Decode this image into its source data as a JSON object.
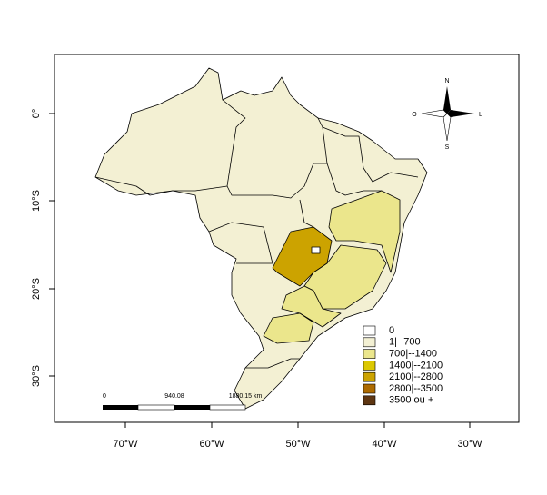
{
  "map": {
    "x_axis": {
      "ticks": [
        "70°W",
        "60°W",
        "50°W",
        "40°W",
        "30°W"
      ]
    },
    "y_axis": {
      "ticks": [
        "0°",
        "10°S",
        "20°S",
        "30°S"
      ]
    },
    "legend": {
      "items": [
        {
          "label": "0",
          "color": "#ffffff"
        },
        {
          "label": "1|--700",
          "color": "#f3f0d3"
        },
        {
          "label": "700|--1400",
          "color": "#ebe68c"
        },
        {
          "label": "1400|--2100",
          "color": "#dcc800"
        },
        {
          "label": "2100|--2800",
          "color": "#cca300"
        },
        {
          "label": "2800|--3500",
          "color": "#ad6a00"
        },
        {
          "label": "3500 ou +",
          "color": "#5e3612"
        }
      ]
    },
    "scale_bar": {
      "labels": [
        "0",
        "940.08",
        "1880.15 km"
      ]
    },
    "compass": {
      "north": "N",
      "south": "S",
      "west": "O",
      "east": "L"
    }
  }
}
